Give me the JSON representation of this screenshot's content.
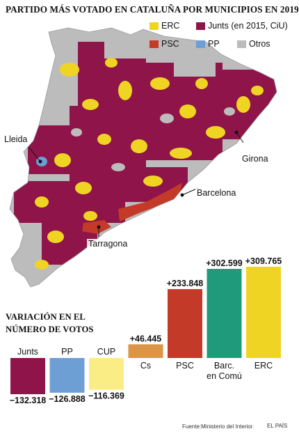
{
  "title": "PARTIDO MÁS VOTADO EN CATALUÑA POR MUNICIPIOS EN 2019",
  "legend": [
    {
      "label": "ERC",
      "color": "#f0d424"
    },
    {
      "label": "Junts (en 2015, CiU)",
      "color": "#8e1449"
    },
    {
      "label": "PSC",
      "color": "#c33a28"
    },
    {
      "label": "PP",
      "color": "#6e9fd4"
    },
    {
      "label": "Otros",
      "color": "#bcbcbc"
    }
  ],
  "cities": {
    "lleida": "Lleida",
    "girona": "Girona",
    "barcelona": "Barcelona",
    "tarragona": "Tarragona"
  },
  "subtitle": {
    "line1": "VARIACIÓN EN EL",
    "line2": "NÚMERO DE VOTOS"
  },
  "chart_data": {
    "type": "bar",
    "title": "VARIACIÓN EN EL NÚMERO DE VOTOS",
    "categories": [
      "Junts",
      "PP",
      "CUP",
      "Cs",
      "PSC",
      "Barc. en Comú",
      "ERC"
    ],
    "value_labels": [
      "−132.318",
      "−126.888",
      "−116.369",
      "+46.445",
      "+233.848",
      "+302.599",
      "+309.765"
    ],
    "values": [
      -132318,
      -126888,
      -116369,
      46445,
      233848,
      302599,
      309765
    ],
    "colors": [
      "#8e1449",
      "#6e9fd4",
      "#fbed86",
      "#dc9445",
      "#c33a28",
      "#1f9b7c",
      "#f0d424"
    ]
  },
  "source": "Fuente:Ministerio del Interior.",
  "brand": "EL PAÍS"
}
